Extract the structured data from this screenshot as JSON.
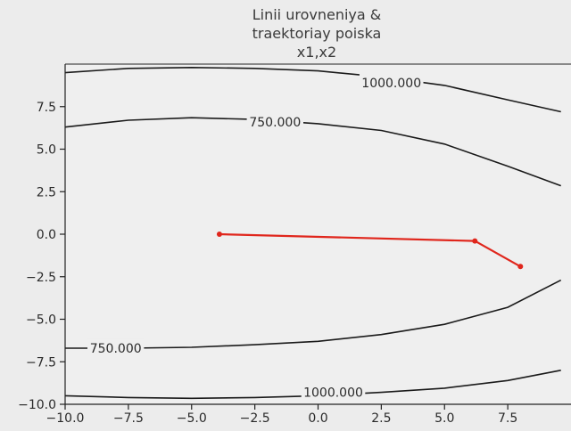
{
  "chart_data": {
    "type": "line",
    "title_lines": [
      "Linii urovneniya &",
      "traektoriay poiska",
      "x1,x2"
    ],
    "xlim": [
      -10,
      10
    ],
    "ylim": [
      -10,
      10
    ],
    "x_ticks": [
      "−10.0",
      "−7.5",
      "−5.0",
      "−2.5",
      "0.0",
      "2.5",
      "5.0",
      "7.5"
    ],
    "y_ticks": [
      "−10.0",
      "−7.5",
      "−5.0",
      "−2.5",
      "0.0",
      "2.5",
      "5.0",
      "7.5"
    ],
    "x_tick_values": [
      -10,
      -7.5,
      -5,
      -2.5,
      0,
      2.5,
      5,
      7.5
    ],
    "y_tick_values": [
      -10,
      -7.5,
      -5,
      -2.5,
      0,
      2.5,
      5,
      7.5
    ],
    "contours": [
      {
        "level": "1000.000",
        "color": "#1a1a1a",
        "points": [
          [
            -10,
            9.5
          ],
          [
            -7.5,
            9.75
          ],
          [
            -5,
            9.8
          ],
          [
            -2.5,
            9.75
          ],
          [
            0,
            9.6
          ],
          [
            2.5,
            9.25
          ],
          [
            5,
            8.75
          ],
          [
            7.5,
            7.9
          ],
          [
            9.6,
            7.2
          ]
        ]
      },
      {
        "level": "750.000",
        "color": "#1a1a1a",
        "points": [
          [
            -10,
            6.3
          ],
          [
            -7.5,
            6.7
          ],
          [
            -5,
            6.85
          ],
          [
            -2.5,
            6.75
          ],
          [
            0,
            6.5
          ],
          [
            2.5,
            6.1
          ],
          [
            5,
            5.3
          ],
          [
            7.5,
            4.0
          ],
          [
            9.6,
            2.85
          ]
        ]
      },
      {
        "level": "750.000",
        "color": "#1a1a1a",
        "points": [
          [
            -10,
            -6.7
          ],
          [
            -7.5,
            -6.7
          ],
          [
            -5,
            -6.65
          ],
          [
            -2.5,
            -6.5
          ],
          [
            0,
            -6.3
          ],
          [
            2.5,
            -5.9
          ],
          [
            5,
            -5.3
          ],
          [
            7.5,
            -4.3
          ],
          [
            9.6,
            -2.7
          ]
        ]
      },
      {
        "level": "1000.000",
        "color": "#1a1a1a",
        "points": [
          [
            -10,
            -9.5
          ],
          [
            -7.5,
            -9.6
          ],
          [
            -5,
            -9.65
          ],
          [
            -2.5,
            -9.6
          ],
          [
            0,
            -9.5
          ],
          [
            2.5,
            -9.3
          ],
          [
            5,
            -9.05
          ],
          [
            7.5,
            -8.6
          ],
          [
            9.6,
            -8.0
          ]
        ]
      }
    ],
    "contour_labels": [
      {
        "text": "1000.000",
        "x": 2.9,
        "y": 8.9
      },
      {
        "text": "750.000",
        "x": -1.7,
        "y": 6.6
      },
      {
        "text": "750.000",
        "x": -8.0,
        "y": -6.7
      },
      {
        "text": "1000.000",
        "x": 0.6,
        "y": -9.3
      }
    ],
    "series": [
      {
        "color": "#e0261c",
        "x": [
          -3.9,
          6.2,
          8.0
        ],
        "y": [
          0.0,
          -0.4,
          -1.9
        ]
      }
    ]
  }
}
